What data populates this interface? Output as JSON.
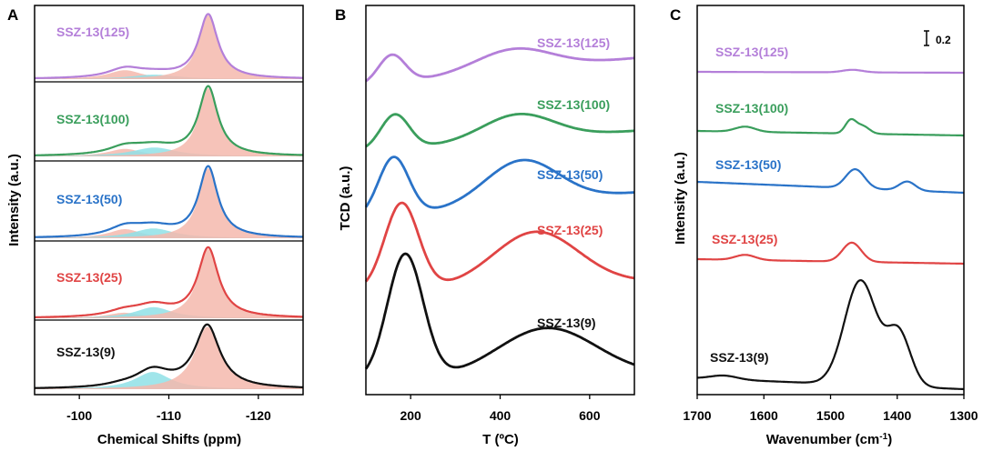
{
  "chart_data": [
    {
      "panel_label": "A",
      "type": "line",
      "title": "",
      "xlabel": "Chemical Shifts (ppm)",
      "ylabel": "Intensity (a.u.)",
      "xlim": [
        -95,
        -125
      ],
      "xticks": [
        -100,
        -110,
        -120
      ],
      "xtick_labels": [
        "-100",
        "-110",
        "-120"
      ],
      "grid": false,
      "series": [
        {
          "name": "SSZ-13(125)",
          "color": "#b47fd9",
          "peaks": [
            {
              "center": -105.1,
              "height": 0.14,
              "width": 2.3,
              "fill": "#f4b8ad"
            },
            {
              "center": -108.4,
              "height": 0.07,
              "width": 3.2,
              "fill": "#8fe0e6"
            },
            {
              "center": -114.4,
              "height": 1.0,
              "width": 1.3,
              "fill": "#f4b8ad"
            }
          ]
        },
        {
          "name": "SSZ-13(100)",
          "color": "#3a9e5c",
          "peaks": [
            {
              "center": -105.1,
              "height": 0.11,
              "width": 2.3,
              "fill": "#f4b8ad"
            },
            {
              "center": -108.4,
              "height": 0.13,
              "width": 3.0,
              "fill": "#8fe0e6"
            },
            {
              "center": -114.4,
              "height": 1.0,
              "width": 1.3,
              "fill": "#f4b8ad"
            }
          ]
        },
        {
          "name": "SSZ-13(50)",
          "color": "#2a73c8",
          "peaks": [
            {
              "center": -105.1,
              "height": 0.13,
              "width": 2.2,
              "fill": "#f4b8ad"
            },
            {
              "center": -108.3,
              "height": 0.14,
              "width": 2.8,
              "fill": "#8fe0e6"
            },
            {
              "center": -114.4,
              "height": 1.0,
              "width": 1.3,
              "fill": "#f4b8ad"
            }
          ]
        },
        {
          "name": "SSZ-13(25)",
          "color": "#e04444",
          "peaks": [
            {
              "center": -105.0,
              "height": 0.08,
              "width": 2.3,
              "fill": "#f4b8ad"
            },
            {
              "center": -108.3,
              "height": 0.16,
              "width": 2.5,
              "fill": "#8fe0e6"
            },
            {
              "center": -114.4,
              "height": 1.0,
              "width": 1.4,
              "fill": "#f4b8ad"
            }
          ]
        },
        {
          "name": "SSZ-13(9)",
          "color": "#111111",
          "peaks": [
            {
              "center": -104.6,
              "height": 0.03,
              "width": 2.2,
              "fill": "#f4b8ad"
            },
            {
              "center": -108.2,
              "height": 0.27,
              "width": 2.4,
              "fill": "#8fe0e6"
            },
            {
              "center": -114.3,
              "height": 0.98,
              "width": 1.7,
              "fill": "#f4b8ad"
            }
          ]
        }
      ]
    },
    {
      "panel_label": "B",
      "type": "line",
      "title": "",
      "xlabel": "T (ºC)",
      "ylabel": "TCD (a.u.)",
      "xlim": [
        100,
        700
      ],
      "xticks": [
        200,
        400,
        600
      ],
      "xtick_labels": [
        "200",
        "400",
        "600"
      ],
      "grid": false,
      "series": [
        {
          "name": "SSZ-13(125)",
          "color": "#b47fd9",
          "low_peak": {
            "center": 158,
            "height": 0.22,
            "width": 30
          },
          "high_peak": {
            "center": 430,
            "height": 0.17,
            "width": 85
          }
        },
        {
          "name": "SSZ-13(100)",
          "color": "#3a9e5c",
          "low_peak": {
            "center": 165,
            "height": 0.27,
            "width": 32
          },
          "high_peak": {
            "center": 440,
            "height": 0.2,
            "width": 80
          }
        },
        {
          "name": "SSZ-13(50)",
          "color": "#2a73c8",
          "low_peak": {
            "center": 162,
            "height": 0.46,
            "width": 34
          },
          "high_peak": {
            "center": 448,
            "height": 0.34,
            "width": 82
          }
        },
        {
          "name": "SSZ-13(25)",
          "color": "#e04444",
          "low_peak": {
            "center": 180,
            "height": 0.68,
            "width": 38
          },
          "high_peak": {
            "center": 480,
            "height": 0.42,
            "width": 95
          }
        },
        {
          "name": "SSZ-13(9)",
          "color": "#111111",
          "low_peak": {
            "center": 188,
            "height": 0.98,
            "width": 40
          },
          "high_peak": {
            "center": 505,
            "height": 0.38,
            "width": 110
          }
        }
      ]
    },
    {
      "panel_label": "C",
      "type": "line",
      "title": "",
      "xlabel": "Wavenumber (cm",
      "xlabel_sup": "-1",
      "xlabel_end": ")",
      "ylabel": "Intensity (a.u.)",
      "xlim": [
        1700,
        1300
      ],
      "xticks": [
        1700,
        1600,
        1500,
        1400,
        1300
      ],
      "xtick_labels": [
        "1700",
        "1600",
        "1500",
        "1400",
        "1300"
      ],
      "scale_bar": {
        "label": "0.2",
        "value": 0.2
      },
      "grid": false,
      "series": [
        {
          "name": "SSZ-13(125)",
          "color": "#b47fd9",
          "peaks": [
            {
              "center": 1467,
              "height": 0.02,
              "width": 15
            }
          ]
        },
        {
          "name": "SSZ-13(100)",
          "color": "#3a9e5c",
          "peaks": [
            {
              "center": 1628,
              "height": 0.04,
              "width": 15
            },
            {
              "center": 1470,
              "height": 0.1,
              "width": 8
            },
            {
              "center": 1452,
              "height": 0.06,
              "width": 10
            }
          ]
        },
        {
          "name": "SSZ-13(50)",
          "color": "#2a73c8",
          "peaks": [
            {
              "center": 1463,
              "height": 0.15,
              "width": 14
            },
            {
              "center": 1385,
              "height": 0.07,
              "width": 12
            }
          ]
        },
        {
          "name": "SSZ-13(25)",
          "color": "#e04444",
          "peaks": [
            {
              "center": 1628,
              "height": 0.04,
              "width": 15
            },
            {
              "center": 1468,
              "height": 0.15,
              "width": 14
            }
          ]
        },
        {
          "name": "SSZ-13(9)",
          "color": "#111111",
          "peaks": [
            {
              "center": 1660,
              "height": 0.03,
              "width": 20
            },
            {
              "center": 1455,
              "height": 0.82,
              "width": 24
            },
            {
              "center": 1398,
              "height": 0.42,
              "width": 18
            }
          ]
        }
      ]
    }
  ]
}
